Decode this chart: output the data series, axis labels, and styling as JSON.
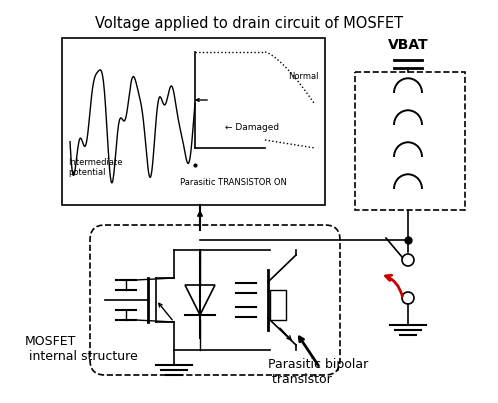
{
  "title": "Voltage applied to drain circuit of MOSFET",
  "title_fontsize": 10.5,
  "bg_color": "#ffffff",
  "fig_width": 4.98,
  "fig_height": 4.03,
  "dpi": 100,
  "labels": {
    "vbat": "VBAT",
    "mosfet_line1": "MOSFET",
    "mosfet_line2": " internal structure",
    "parasitic_line1": "Parasitic bipolar",
    "parasitic_line2": " transistor",
    "normal": "Normal",
    "damaged": "← Damaged",
    "intermediate_line1": "Intermediate",
    "intermediate_line2": "potential",
    "parasitic_on": "Parasitic TRANSISTOR ON"
  },
  "colors": {
    "black": "#000000",
    "red": "#cc0000",
    "white": "#ffffff"
  }
}
